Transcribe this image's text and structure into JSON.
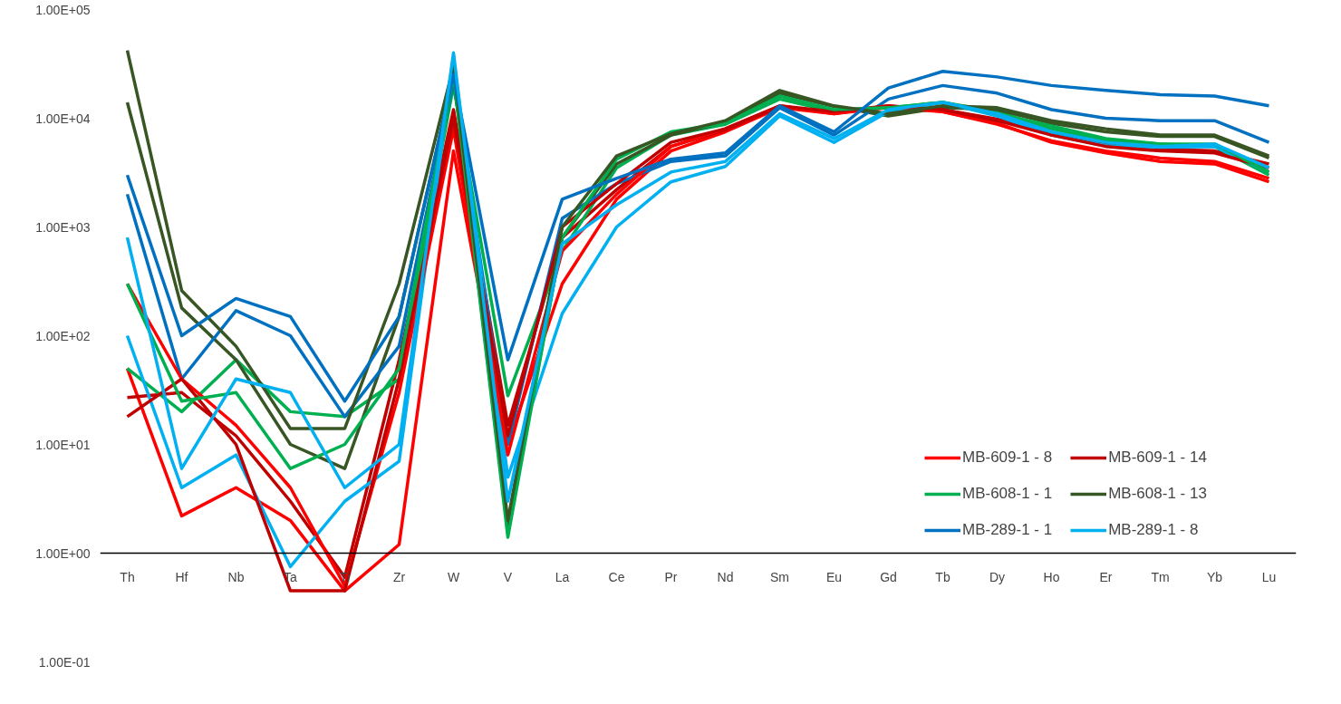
{
  "chart_data": {
    "type": "line",
    "categories": [
      "Th",
      "Hf",
      "Nb",
      "Ta",
      "Ti",
      "Zr",
      "W",
      "V",
      "La",
      "Ce",
      "Pr",
      "Nd",
      "Sm",
      "Eu",
      "Gd",
      "Tb",
      "Dy",
      "Ho",
      "Er",
      "Tm",
      "Yb",
      "Lu"
    ],
    "log": "y",
    "ylim": [
      0.1,
      100000
    ],
    "yticks": [
      {
        "value": 0.1,
        "label": "1.00E-01"
      },
      {
        "value": 1,
        "label": "1.00E+00"
      },
      {
        "value": 10,
        "label": "1.00E+01"
      },
      {
        "value": 100,
        "label": "1.00E+02"
      },
      {
        "value": 1000,
        "label": "1.00E+03"
      },
      {
        "value": 10000,
        "label": "1.00E+04"
      },
      {
        "value": 100000,
        "label": "1.00E+05"
      }
    ],
    "grid": false,
    "legend": "bottom right",
    "marker": "none",
    "line_style": "solid",
    "series": [
      {
        "color": "#ff0000",
        "values": [
          50,
          2.2,
          4,
          2,
          0.45,
          1.2,
          5000,
          10,
          300,
          1800,
          5000,
          7500,
          12500,
          11000,
          12500,
          11500,
          8800,
          6200,
          5000,
          4300,
          4000,
          2800
        ]
      },
      {
        "color": "#c00000",
        "values": [
          27,
          30,
          12,
          3,
          0.6,
          60,
          12000,
          15,
          800,
          2200,
          5500,
          7800,
          12800,
          11200,
          12800,
          12000,
          9800,
          7200,
          5800,
          5200,
          5000,
          3800
        ]
      },
      {
        "color": "#00b050",
        "values": [
          50,
          20,
          60,
          20,
          18,
          40,
          20000,
          28,
          600,
          3500,
          7000,
          8800,
          15000,
          11500,
          12500,
          14000,
          11500,
          8000,
          6200,
          5800,
          5500,
          3000
        ]
      },
      {
        "color": "#375623",
        "values": [
          14000,
          180,
          60,
          10,
          6,
          150,
          25000,
          1.6,
          800,
          3800,
          7000,
          9200,
          17000,
          12800,
          10500,
          12500,
          12000,
          9000,
          7500,
          6800,
          6800,
          4300
        ]
      },
      {
        "color": "#0070c0",
        "values": [
          2000,
          40,
          170,
          100,
          18,
          80,
          22000,
          10,
          1200,
          2500,
          4000,
          4500,
          12500,
          7000,
          15000,
          20000,
          17000,
          12000,
          10000,
          9500,
          9500,
          6000
        ]
      },
      {
        "color": "#00b0f0",
        "values": [
          100,
          4,
          8,
          0.75,
          3,
          7,
          35000,
          5,
          160,
          1000,
          2600,
          3600,
          10500,
          6000,
          11500,
          14000,
          10500,
          7000,
          5600,
          5400,
          5500,
          3200
        ]
      },
      {
        "name": "MB-609-1 - 8",
        "color": "#ff0000",
        "values": [
          300,
          40,
          15,
          4,
          0.5,
          30,
          8000,
          8,
          600,
          2000,
          5500,
          8000,
          13000,
          11000,
          13000,
          11500,
          9000,
          6000,
          4800,
          4000,
          3800,
          2600
        ]
      },
      {
        "name": "MB-609-1 - 14",
        "color": "#c00000",
        "values": [
          18,
          40,
          10,
          0.45,
          0.45,
          40,
          10000,
          12,
          1000,
          2500,
          6000,
          8000,
          13000,
          11500,
          13000,
          12000,
          9500,
          7000,
          5500,
          5000,
          4800,
          3500
        ]
      },
      {
        "name": "MB-608-1 - 1",
        "color": "#00b050",
        "values": [
          300,
          25,
          30,
          6,
          10,
          50,
          25000,
          1.4,
          800,
          4200,
          7500,
          9000,
          16000,
          12000,
          12500,
          14000,
          11000,
          8500,
          6500,
          5800,
          5800,
          3200
        ]
      },
      {
        "name": "MB-608-1 - 13",
        "color": "#375623",
        "values": [
          42000,
          260,
          80,
          14,
          14,
          300,
          30000,
          2,
          1000,
          4500,
          7200,
          9500,
          18000,
          13000,
          11000,
          13000,
          12500,
          9500,
          8000,
          7000,
          7000,
          4500
        ]
      },
      {
        "name": "MB-289-1 - 1",
        "color": "#0070c0",
        "values": [
          3000,
          100,
          220,
          150,
          25,
          150,
          25000,
          60,
          1800,
          2800,
          4200,
          4800,
          13000,
          7500,
          19000,
          27000,
          24000,
          20000,
          18000,
          16500,
          16000,
          13000
        ]
      },
      {
        "name": "MB-289-1 - 8",
        "color": "#00b0f0",
        "values": [
          800,
          6,
          40,
          30,
          4,
          10,
          40000,
          3,
          700,
          1600,
          3200,
          4000,
          11000,
          6500,
          12000,
          14000,
          11000,
          7500,
          6000,
          5500,
          5800,
          3500
        ]
      }
    ]
  }
}
